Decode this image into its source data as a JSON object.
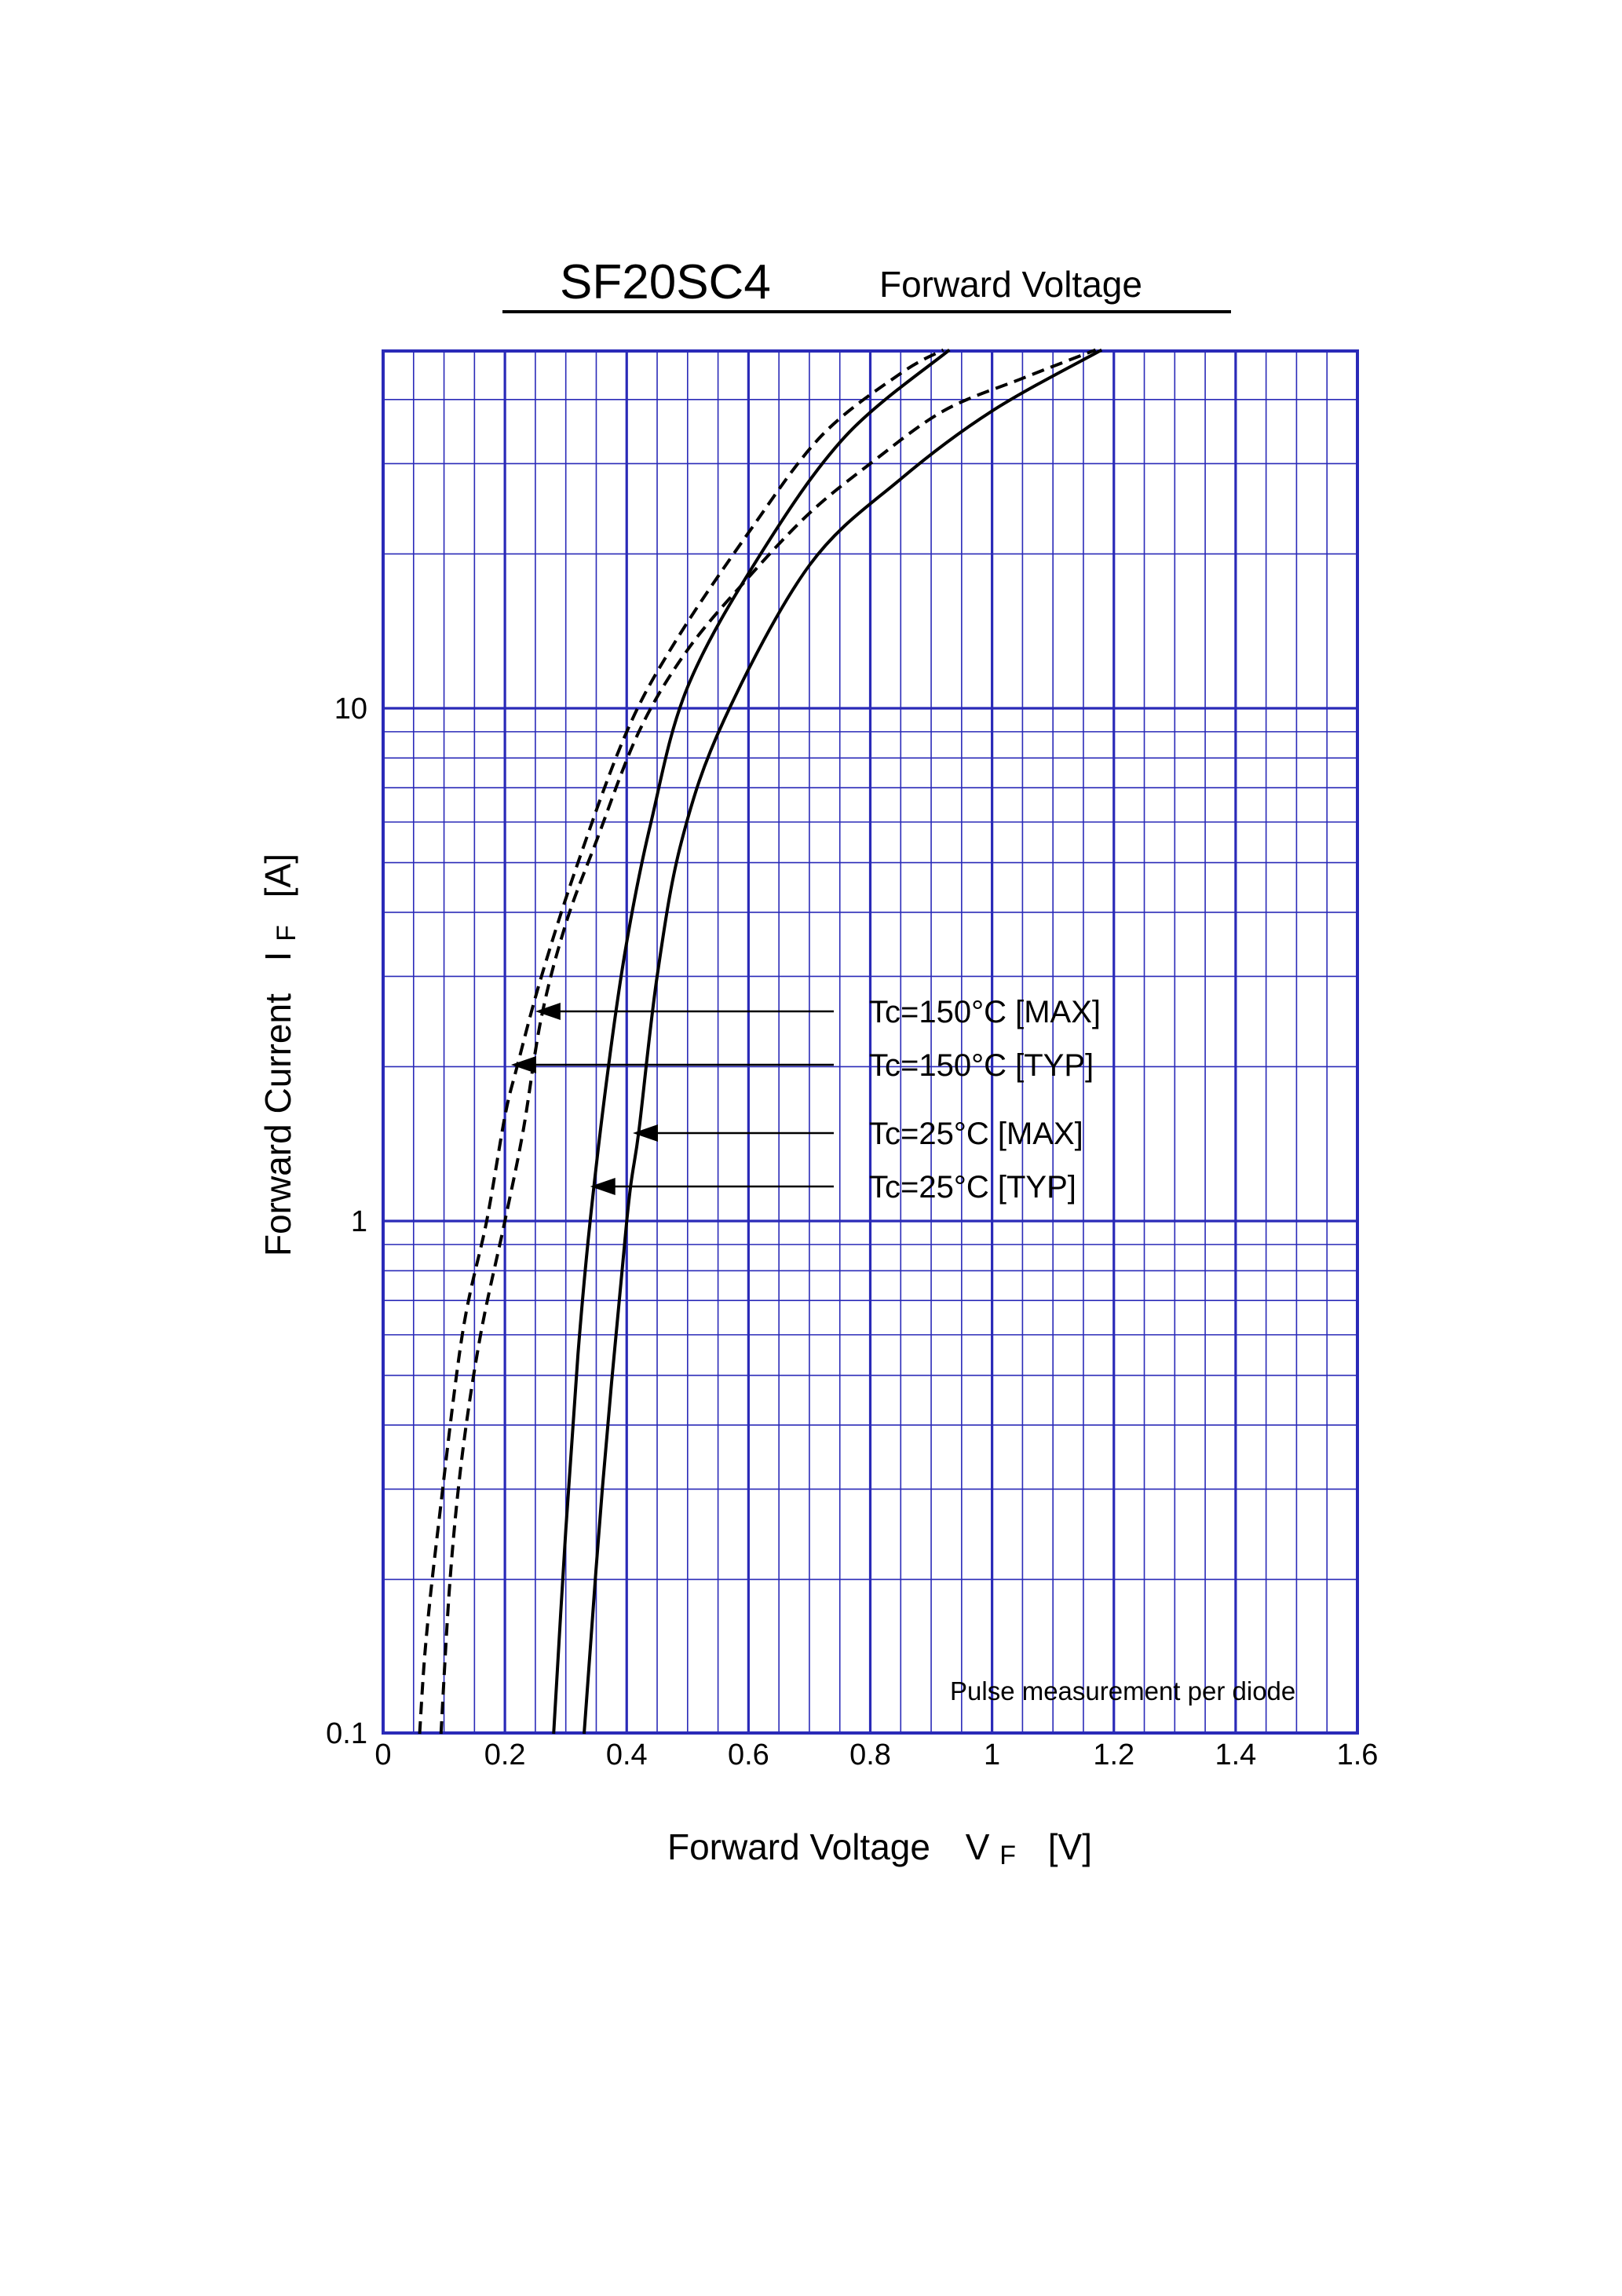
{
  "chart_data": {
    "type": "line",
    "title": "SF20SC4",
    "subtitle": "Forward Voltage",
    "xlabel": "Forward Voltage",
    "xlabel_symbol": "V",
    "xlabel_subscript": "F",
    "xlabel_unit": "[V]",
    "ylabel": "Forward Current",
    "ylabel_symbol": "I",
    "ylabel_subscript": "F",
    "ylabel_unit": "[A]",
    "xlim": [
      0,
      1.6
    ],
    "ylim": [
      0.1,
      50
    ],
    "yscale": "log",
    "grid": true,
    "x_ticks": [
      "0",
      "0.2",
      "0.4",
      "0.6",
      "0.8",
      "1",
      "1.2",
      "1.4",
      "1.6"
    ],
    "y_ticks": [
      "0.1",
      "1",
      "10"
    ],
    "annotation": "Pulse measurement per diode",
    "colors": {
      "grid": "#2a2ab8",
      "curves": "#000000",
      "background": "#ffffff"
    },
    "series": [
      {
        "name": "Tc=150°C [MAX]",
        "style": "dashed",
        "points": [
          [
            0.095,
            0.1
          ],
          [
            0.11,
            0.2
          ],
          [
            0.13,
            0.35
          ],
          [
            0.16,
            0.6
          ],
          [
            0.2,
            1.0
          ],
          [
            0.23,
            1.5
          ],
          [
            0.26,
            2.5
          ],
          [
            0.3,
            3.8
          ],
          [
            0.35,
            5.5
          ],
          [
            0.42,
            9.0
          ],
          [
            0.5,
            13.0
          ],
          [
            0.6,
            18.0
          ],
          [
            0.7,
            24.0
          ],
          [
            0.8,
            30.0
          ],
          [
            0.92,
            38.0
          ],
          [
            1.05,
            44.0
          ],
          [
            1.17,
            50.0
          ]
        ]
      },
      {
        "name": "Tc=150°C [TYP]",
        "style": "dashed",
        "points": [
          [
            0.06,
            0.1
          ],
          [
            0.07,
            0.15
          ],
          [
            0.09,
            0.25
          ],
          [
            0.13,
            0.6
          ],
          [
            0.17,
            1.0
          ],
          [
            0.2,
            1.6
          ],
          [
            0.22,
            2.0
          ],
          [
            0.26,
            3.0
          ],
          [
            0.32,
            5.0
          ],
          [
            0.4,
            9.0
          ],
          [
            0.48,
            13.5
          ],
          [
            0.6,
            22.0
          ],
          [
            0.72,
            34.0
          ],
          [
            0.85,
            45.0
          ],
          [
            0.92,
            50.0
          ]
        ]
      },
      {
        "name": "Tc=25°C [MAX]",
        "style": "solid",
        "points": [
          [
            0.33,
            0.1
          ],
          [
            0.36,
            0.3
          ],
          [
            0.4,
            1.0
          ],
          [
            0.42,
            1.5
          ],
          [
            0.45,
            3.0
          ],
          [
            0.49,
            5.5
          ],
          [
            0.56,
            9.5
          ],
          [
            0.7,
            19.0
          ],
          [
            0.85,
            28.0
          ],
          [
            1.0,
            38.0
          ],
          [
            1.18,
            50.0
          ]
        ]
      },
      {
        "name": "Tc=25°C [TYP]",
        "style": "solid",
        "points": [
          [
            0.28,
            0.1
          ],
          [
            0.3,
            0.25
          ],
          [
            0.32,
            0.55
          ],
          [
            0.34,
            1.0
          ],
          [
            0.37,
            2.0
          ],
          [
            0.4,
            3.5
          ],
          [
            0.44,
            6.0
          ],
          [
            0.5,
            11.0
          ],
          [
            0.62,
            20.0
          ],
          [
            0.76,
            34.0
          ],
          [
            0.93,
            50.0
          ]
        ]
      }
    ],
    "legend": [
      {
        "label": "Tc=150°C [MAX]",
        "arrow_to": [
          0.25,
          2.5
        ]
      },
      {
        "label": "Tc=150°C [TYP]",
        "arrow_to": [
          0.21,
          2.0
        ]
      },
      {
        "label": "Tc=25°C [MAX]",
        "arrow_to": [
          0.41,
          1.45
        ]
      },
      {
        "label": "Tc=25°C [TYP]",
        "arrow_to": [
          0.34,
          1.15
        ]
      }
    ]
  }
}
